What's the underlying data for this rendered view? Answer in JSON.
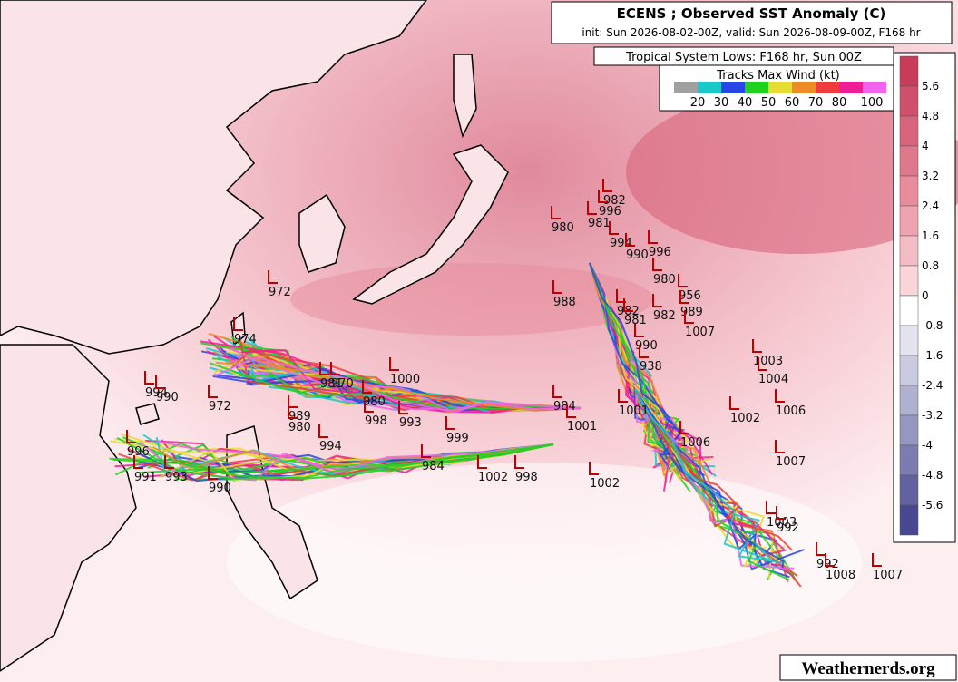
{
  "header": {
    "title": "ECENS ; Observed SST Anomaly (C)",
    "subtitle": "init: Sun 2026-08-02-00Z, valid: Sun 2026-08-09-00Z, F168 hr"
  },
  "lows_label": "Tropical System Lows: F168 hr, Sun 00Z",
  "wind_legend": {
    "title": "Tracks Max Wind (kt)",
    "ticks": [
      20,
      30,
      40,
      50,
      60,
      70,
      80,
      100
    ],
    "colors": [
      "#a0a0a0",
      "#19c8c8",
      "#2846e6",
      "#1ed21e",
      "#e6dc32",
      "#f08c28",
      "#f03c3c",
      "#f01e96",
      "#f064f0"
    ]
  },
  "sst_colorbar": {
    "ticks": [
      5.6,
      4.8,
      4,
      3.2,
      2.4,
      1.6,
      0.8,
      0,
      -0.8,
      -1.6,
      -2.4,
      -3.2,
      -4,
      -4.8,
      -5.6
    ],
    "colors": [
      "#c83c5a",
      "#d0506c",
      "#d8647c",
      "#e0788c",
      "#e88c9c",
      "#eea4b0",
      "#f4bcc4",
      "#fad6da",
      "#ffffff",
      "#e4e4f0",
      "#cacae0",
      "#b0b0d0",
      "#9696c0",
      "#7c7cb0",
      "#6262a0",
      "#484890"
    ]
  },
  "pressure_labels": [
    "982",
    "996",
    "981",
    "980",
    "994",
    "996",
    "990",
    "980",
    "956",
    "989",
    "988",
    "982",
    "981",
    "982",
    "1007",
    "990",
    "938",
    "1003",
    "1004",
    "1006",
    "1002",
    "1006",
    "1007",
    "1003",
    "992",
    "992",
    "1008",
    "1007",
    "984",
    "1001",
    "1001",
    "1002",
    "1000",
    "980",
    "998",
    "993",
    "984",
    "1002",
    "998",
    "999",
    "989",
    "980",
    "994",
    "972",
    "994",
    "990",
    "990",
    "991",
    "993",
    "996",
    "972",
    "974",
    "981",
    "970"
  ],
  "credit": "Weathernerds.org"
}
